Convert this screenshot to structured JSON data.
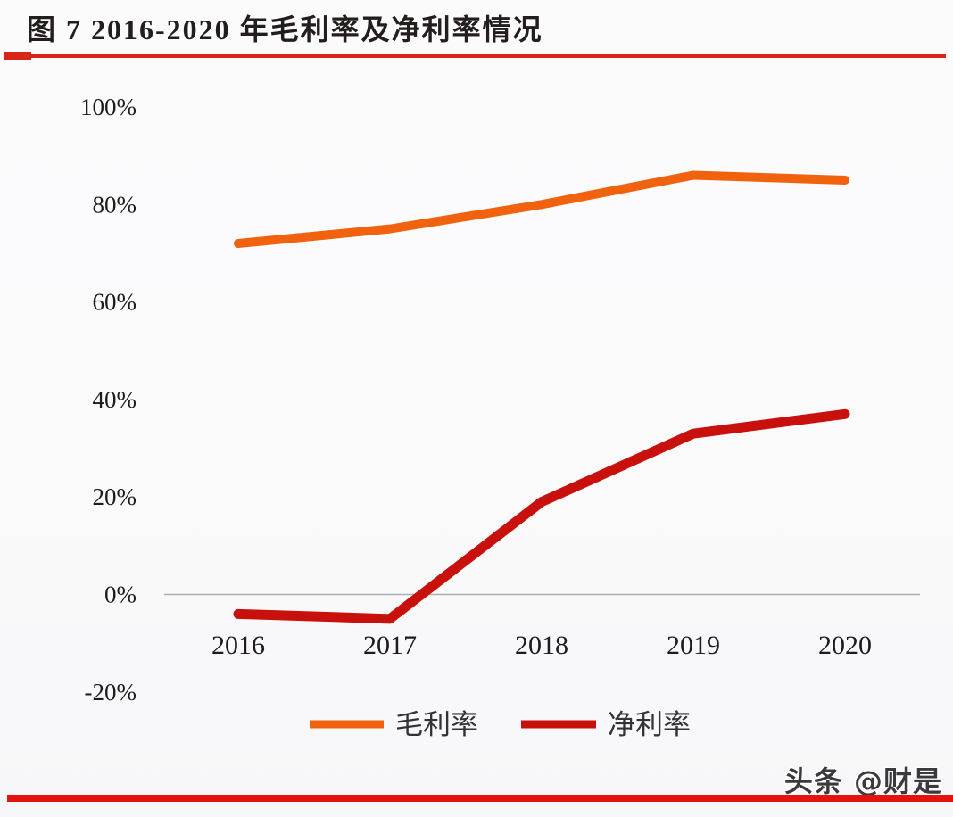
{
  "figure": {
    "title": "图 7 2016-2020 年毛利率及净利率情况",
    "watermark": "头条 @财是"
  },
  "colors": {
    "title_text": "#231D1E",
    "title_rule": "#D8251A",
    "bottom_bar": "#E5130E",
    "axis_line": "#A9AFB8",
    "label_text": "#1F1B1C",
    "gross_margin": "#F1620F",
    "net_margin": "#C8100D",
    "watermark_text": "#3A3A3C"
  },
  "chart_data": {
    "type": "line",
    "title": "图 7 2016-2020 年毛利率及净利率情况",
    "categories": [
      "2016",
      "2017",
      "2018",
      "2019",
      "2020"
    ],
    "series": [
      {
        "name": "毛利率",
        "color": "#F1620F",
        "values": [
          72,
          75,
          80,
          86,
          85
        ]
      },
      {
        "name": "净利率",
        "color": "#C8100D",
        "values": [
          -4,
          -5,
          19,
          33,
          37
        ]
      }
    ],
    "unit": "%",
    "xlabel": "",
    "ylabel": "",
    "ylim": [
      -20,
      100
    ],
    "y_ticks": [
      {
        "label": "100%",
        "value": 100
      },
      {
        "label": "80%",
        "value": 80
      },
      {
        "label": "60%",
        "value": 60
      },
      {
        "label": "40%",
        "value": 40
      },
      {
        "label": "20%",
        "value": 20
      },
      {
        "label": "0%",
        "value": 0
      },
      {
        "label": "-20%",
        "value": -20
      }
    ],
    "gridlines": "zero-baseline-only",
    "legend_position": "bottom"
  }
}
